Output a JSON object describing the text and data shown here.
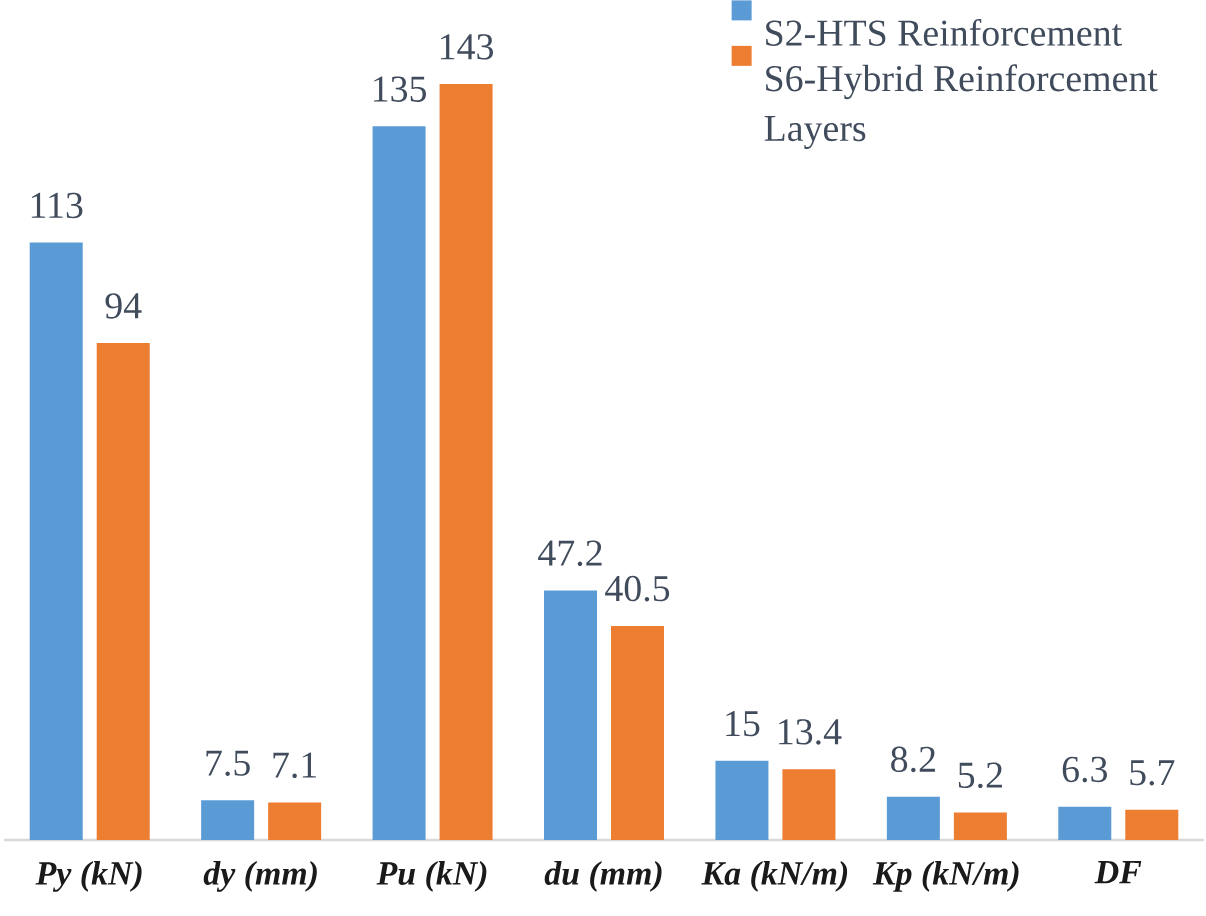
{
  "chart_data": {
    "type": "bar",
    "categories": [
      "Py (kN)",
      "dy (mm)",
      "Pu (kN)",
      "du (mm)",
      "Ka (kN/m)",
      "Kp (kN/m)",
      "DF"
    ],
    "series": [
      {
        "name": "S2-HTS Reinforcement",
        "color": "#5b9bd5",
        "values": [
          113,
          7.5,
          135,
          47.2,
          15,
          8.2,
          6.3
        ]
      },
      {
        "name": "S6-Hybrid Reinforcement Layers",
        "color": "#ed7d31",
        "values": [
          94,
          7.1,
          143,
          40.5,
          13.4,
          5.2,
          5.7
        ]
      }
    ],
    "data_labels": true,
    "legend": "top right"
  }
}
